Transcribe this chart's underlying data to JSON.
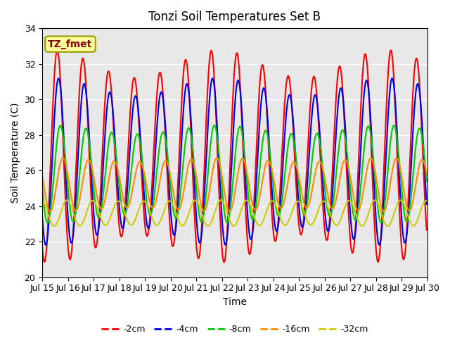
{
  "title": "Tonzi Soil Temperatures Set B",
  "xlabel": "Time",
  "ylabel": "Soil Temperature (C)",
  "ylim": [
    20,
    34
  ],
  "num_days": 15,
  "x_tick_labels": [
    "Jul 15",
    "Jul 16",
    "Jul 17",
    "Jul 18",
    "Jul 19",
    "Jul 20",
    "Jul 21",
    "Jul 22",
    "Jul 23",
    "Jul 24",
    "Jul 25",
    "Jul 26",
    "Jul 27",
    "Jul 28",
    "Jul 29",
    "Jul 30"
  ],
  "annotation_text": "TZ_fmet",
  "annotation_color": "#8B0000",
  "annotation_bg": "#FFFF99",
  "annotation_edge": "#999900",
  "bg_inner": "#E8E8E8",
  "bg_outer": "#FFFFFF",
  "lines": {
    "-2cm": {
      "color": "#FF0000",
      "lw": 1.5
    },
    "-4cm": {
      "color": "#0000EE",
      "lw": 1.5
    },
    "-8cm": {
      "color": "#00CC00",
      "lw": 1.5
    },
    "-16cm": {
      "color": "#FF8C00",
      "lw": 1.5
    },
    "-32cm": {
      "color": "#CCCC00",
      "lw": 1.5
    }
  },
  "legend_order": [
    "-2cm",
    "-4cm",
    "-8cm",
    "-16cm",
    "-32cm"
  ],
  "base_temps": {
    "-2cm": 26.8,
    "-4cm": 26.5,
    "-8cm": 25.8,
    "-16cm": 25.2,
    "-32cm": 23.6
  },
  "amplitudes": {
    "-2cm": 5.2,
    "-4cm": 4.2,
    "-8cm": 2.5,
    "-16cm": 1.4,
    "-32cm": 0.7
  },
  "phase_delays_days": {
    "-2cm": 0.0,
    "-4cm": 0.05,
    "-8cm": 0.12,
    "-16cm": 0.22,
    "-32cm": 0.38
  },
  "amp_envelope_strength": {
    "-2cm": 0.15,
    "-4cm": 0.12,
    "-8cm": 0.1,
    "-16cm": 0.08,
    "-32cm": 0.05
  }
}
